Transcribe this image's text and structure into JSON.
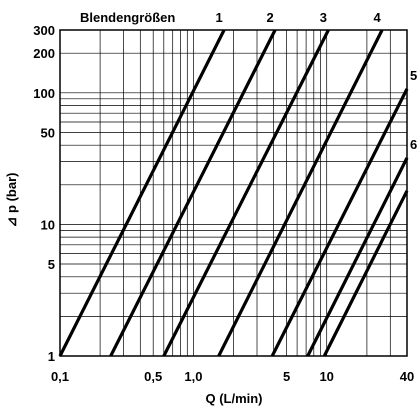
{
  "chart_data": {
    "type": "line",
    "title": "Blendengrößen",
    "xlabel": "Q (L/min)",
    "ylabel": "⊿ p (bar)",
    "x_scale": "log",
    "y_scale": "log",
    "xlim": [
      0.1,
      40
    ],
    "ylim": [
      1,
      300
    ],
    "grid": true,
    "x_ticks": [
      {
        "value": 0.1,
        "label": "0,1"
      },
      {
        "value": 0.5,
        "label": "0,5"
      },
      {
        "value": 1,
        "label": "1,0"
      },
      {
        "value": 5,
        "label": "5"
      },
      {
        "value": 10,
        "label": "10"
      },
      {
        "value": 40,
        "label": "40"
      }
    ],
    "y_ticks": [
      {
        "value": 1,
        "label": "1"
      },
      {
        "value": 5,
        "label": "5"
      },
      {
        "value": 10,
        "label": "10"
      },
      {
        "value": 50,
        "label": "50"
      },
      {
        "value": 100,
        "label": "100"
      },
      {
        "value": 200,
        "label": "200"
      },
      {
        "value": 300,
        "label": "300"
      }
    ],
    "series": [
      {
        "name": "1",
        "points": [
          [
            0.1,
            1
          ],
          [
            1.7,
            300
          ]
        ]
      },
      {
        "name": "2",
        "points": [
          [
            0.24,
            1
          ],
          [
            4.1,
            300
          ]
        ]
      },
      {
        "name": "3",
        "points": [
          [
            0.6,
            1
          ],
          [
            10.3,
            300
          ]
        ]
      },
      {
        "name": "4",
        "points": [
          [
            1.55,
            1
          ],
          [
            26,
            300
          ]
        ]
      },
      {
        "name": "5",
        "points": [
          [
            3.9,
            1
          ],
          [
            40,
            107
          ]
        ]
      },
      {
        "name": "6",
        "points": [
          [
            7.2,
            1
          ],
          [
            40,
            32
          ]
        ]
      },
      {
        "name": "",
        "points": [
          [
            9.6,
            1
          ],
          [
            40,
            18
          ]
        ]
      }
    ]
  }
}
